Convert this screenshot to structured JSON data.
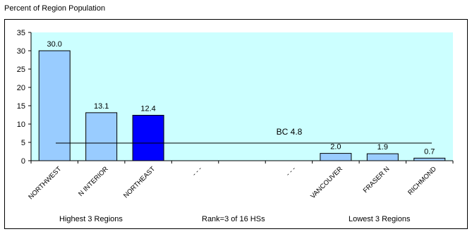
{
  "chart_data": {
    "type": "bar",
    "ylabel": "Percent of Region Population",
    "categories": [
      "NORTHWEST",
      "N INTERIOR",
      "NORTHEAST",
      "- - -",
      "",
      "- - -",
      "VANCOUVER",
      "FRASER N",
      "RICHMOND"
    ],
    "values": [
      30.0,
      13.1,
      12.4,
      null,
      null,
      null,
      2.0,
      1.9,
      0.7
    ],
    "value_labels": [
      "30.0",
      "13.1",
      "12.4",
      "",
      "",
      "",
      "2.0",
      "1.9",
      "0.7"
    ],
    "highlight_index": 2,
    "ylim": [
      0,
      35
    ],
    "yticks": [
      0,
      5,
      10,
      15,
      20,
      25,
      30,
      35
    ],
    "reference_line": {
      "label": "BC 4.8",
      "value": 4.8
    },
    "footer": {
      "left": "Highest 3 Regions",
      "center": "Rank=3 of 16 HSs",
      "right": "Lowest 3 Regions"
    },
    "colors": {
      "plot_background": "#ccffff",
      "bar": "#99ccff",
      "bar_highlight": "#0000ff",
      "axis": "#000000"
    }
  }
}
